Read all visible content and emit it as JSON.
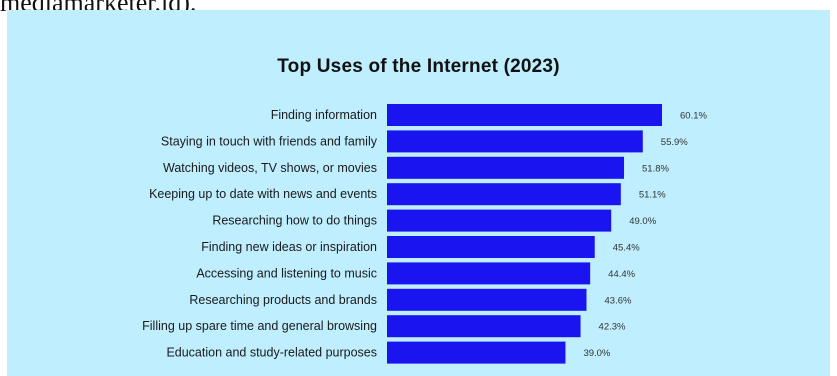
{
  "header_text": "mediamarketer.id).",
  "colors": {
    "background": "#bfeeff",
    "bar": "#1a14f0",
    "title": "#111111"
  },
  "chart_data": {
    "type": "bar",
    "orientation": "horizontal",
    "title": "Top Uses of the Internet (2023)",
    "xlabel": "",
    "ylabel": "",
    "xlim": [
      0,
      60.1
    ],
    "grid": false,
    "categories": [
      "Finding information",
      "Staying in touch with friends and family",
      "Watching videos, TV shows, or movies",
      "Keeping up to date with news and events",
      "Researching how to do things",
      "Finding new ideas or inspiration",
      "Accessing and listening to music",
      "Researching products and brands",
      "Filling up spare time and general browsing",
      "Education and study-related purposes"
    ],
    "values": [
      60.1,
      55.9,
      51.8,
      51.1,
      49.0,
      45.4,
      44.4,
      43.6,
      42.3,
      39.0
    ],
    "value_labels": [
      "60.1%",
      "55.9%",
      "51.8%",
      "51.1%",
      "49.0%",
      "45.4%",
      "44.4%",
      "43.6%",
      "42.3%",
      "39.0%"
    ]
  }
}
